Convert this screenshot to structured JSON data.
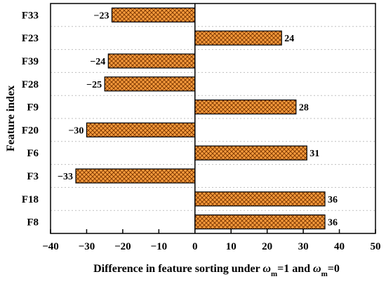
{
  "chart_data": {
    "type": "bar",
    "orientation": "horizontal",
    "categories": [
      "F33",
      "F23",
      "F39",
      "F28",
      "F9",
      "F20",
      "F6",
      "F3",
      "F18",
      "F8"
    ],
    "values": [
      -23,
      24,
      -24,
      -25,
      28,
      -30,
      31,
      -33,
      36,
      36
    ],
    "value_labels": [
      "−23",
      "24",
      "−24",
      "−25",
      "28",
      "−30",
      "31",
      "−33",
      "36",
      "36"
    ],
    "ylabel": "Feature index",
    "xlabel": {
      "prefix": "Difference in feature sorting under ",
      "var1": "ω",
      "sub1": "m",
      "mid": "=1 and ",
      "var2": "ω",
      "sub2": "m",
      "suffix": "=0"
    },
    "xlim": [
      -40,
      50
    ],
    "xticks": [
      -40,
      -30,
      -20,
      -10,
      0,
      10,
      20,
      30,
      40,
      50
    ],
    "xtick_labels": [
      "−40",
      "−30",
      "−20",
      "−10",
      "0",
      "10",
      "20",
      "30",
      "40",
      "50"
    ],
    "grid": "dotted horizontal lines between categories",
    "colors": {
      "bar_fill": "#f59a3c",
      "bar_hatch": "#7a3500",
      "bar_edge": "#000000",
      "grid": "#bfbfbf"
    },
    "pattern": "crosshatch"
  }
}
